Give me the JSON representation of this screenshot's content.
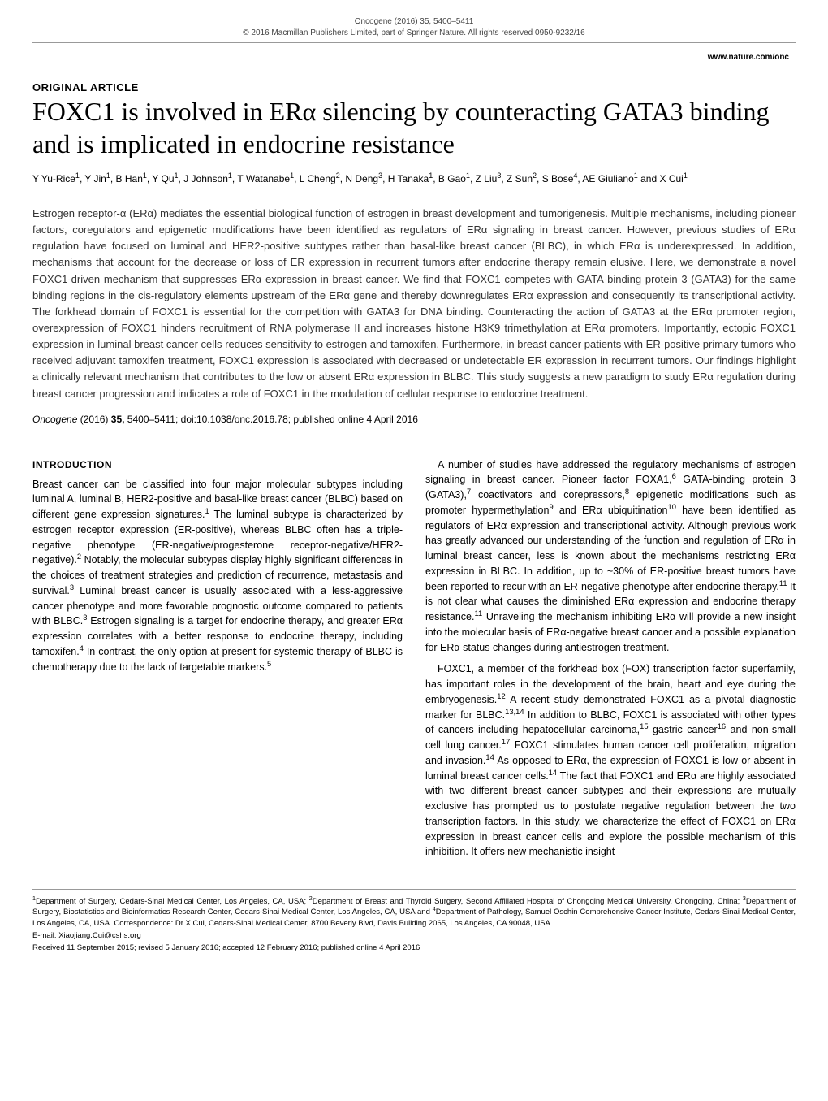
{
  "header": {
    "journal_line": "Oncogene (2016) 35, 5400–5411",
    "copyright_line": "© 2016 Macmillan Publishers Limited, part of Springer Nature. All rights reserved 0950-9232/16",
    "url": "www.nature.com/onc"
  },
  "article": {
    "type": "ORIGINAL ARTICLE",
    "title": "FOXC1 is involved in ERα silencing by counteracting GATA3 binding and is implicated in endocrine resistance",
    "authors_html": "Y Yu-Rice<sup>1</sup>, Y Jin<sup>1</sup>, B Han<sup>1</sup>, Y Qu<sup>1</sup>, J Johnson<sup>1</sup>, T Watanabe<sup>1</sup>, L Cheng<sup>2</sup>, N Deng<sup>3</sup>, H Tanaka<sup>1</sup>, B Gao<sup>1</sup>, Z Liu<sup>3</sup>, Z Sun<sup>2</sup>, S Bose<sup>4</sup>, AE Giuliano<sup>1</sup> and X Cui<sup>1</sup>",
    "abstract": "Estrogen receptor-α (ERα) mediates the essential biological function of estrogen in breast development and tumorigenesis. Multiple mechanisms, including pioneer factors, coregulators and epigenetic modifications have been identified as regulators of ERα signaling in breast cancer. However, previous studies of ERα regulation have focused on luminal and HER2-positive subtypes rather than basal-like breast cancer (BLBC), in which ERα is underexpressed. In addition, mechanisms that account for the decrease or loss of ER expression in recurrent tumors after endocrine therapy remain elusive. Here, we demonstrate a novel FOXC1-driven mechanism that suppresses ERα expression in breast cancer. We find that FOXC1 competes with GATA-binding protein 3 (GATA3) for the same binding regions in the cis-regulatory elements upstream of the ERα gene and thereby downregulates ERα expression and consequently its transcriptional activity. The forkhead domain of FOXC1 is essential for the competition with GATA3 for DNA binding. Counteracting the action of GATA3 at the ERα promoter region, overexpression of FOXC1 hinders recruitment of RNA polymerase II and increases histone H3K9 trimethylation at ERα promoters. Importantly, ectopic FOXC1 expression in luminal breast cancer cells reduces sensitivity to estrogen and tamoxifen. Furthermore, in breast cancer patients with ER-positive primary tumors who received adjuvant tamoxifen treatment, FOXC1 expression is associated with decreased or undetectable ER expression in recurrent tumors. Our findings highlight a clinically relevant mechanism that contributes to the low or absent ERα expression in BLBC. This study suggests a new paradigm to study ERα regulation during breast cancer progression and indicates a role of FOXC1 in the modulation of cellular response to endocrine treatment.",
    "citation_journal": "Oncogene",
    "citation_year": "(2016)",
    "citation_volume": "35,",
    "citation_rest": "5400–5411; doi:10.1038/onc.2016.78; published online 4 April 2016"
  },
  "body": {
    "section_head": "INTRODUCTION",
    "p1_html": "Breast cancer can be classified into four major molecular subtypes including luminal A, luminal B, HER2-positive and basal-like breast cancer (BLBC) based on different gene expression signatures.<sup>1</sup> The luminal subtype is characterized by estrogen receptor expression (ER-positive), whereas BLBC often has a triple-negative phenotype (ER-negative/progesterone receptor-negative/HER2-negative).<sup>2</sup> Notably, the molecular subtypes display highly significant differences in the choices of treatment strategies and prediction of recurrence, metastasis and survival.<sup>3</sup> Luminal breast cancer is usually associated with a less-aggressive cancer phenotype and more favorable prognostic outcome compared to patients with BLBC.<sup>3</sup> Estrogen signaling is a target for endocrine therapy, and greater ERα expression correlates with a better response to endocrine therapy, including tamoxifen.<sup>4</sup> In contrast, the only option at present for systemic therapy of BLBC is chemotherapy due to the lack of targetable markers.<sup>5</sup>",
    "p2_html": "A number of studies have addressed the regulatory mechanisms of estrogen signaling in breast cancer. Pioneer factor FOXA1,<sup>6</sup> GATA-binding protein 3 (GATA3),<sup>7</sup> coactivators and corepressors,<sup>8</sup> epigenetic modifications such as promoter hypermethylation<sup>9</sup> and ERα ubiquitination<sup>10</sup> have been identified as regulators of ERα expression and transcriptional activity. Although previous work has greatly advanced our understanding of the function and regulation of ERα in luminal breast cancer, less is known about the mechanisms restricting ERα expression in BLBC. In addition, up to ~30% of ER-positive breast tumors have been reported to recur with an ER-negative phenotype after endocrine therapy.<sup>11</sup> It is not clear what causes the diminished ERα expression and endocrine therapy resistance.<sup>11</sup> Unraveling the mechanism inhibiting ERα will provide a new insight into the molecular basis of ERα-negative breast cancer and a possible explanation for ERα status changes during antiestrogen treatment.",
    "p3_html": "FOXC1, a member of the forkhead box (FOX) transcription factor superfamily, has important roles in the development of the brain, heart and eye during the embryogenesis.<sup>12</sup> A recent study demonstrated FOXC1 as a pivotal diagnostic marker for BLBC.<sup>13,14</sup> In addition to BLBC, FOXC1 is associated with other types of cancers including hepatocellular carcinoma,<sup>15</sup> gastric cancer<sup>16</sup> and non-small cell lung cancer.<sup>17</sup> FOXC1 stimulates human cancer cell proliferation, migration and invasion.<sup>14</sup> As opposed to ERα, the expression of FOXC1 is low or absent in luminal breast cancer cells.<sup>14</sup> The fact that FOXC1 and ERα are highly associated with two different breast cancer subtypes and their expressions are mutually exclusive has prompted us to postulate negative regulation between the two transcription factors. In this study, we characterize the effect of FOXC1 on ERα expression in breast cancer cells and explore the possible mechanism of this inhibition. It offers new mechanistic insight"
  },
  "footer": {
    "affiliations_html": "<sup>1</sup>Department of Surgery, Cedars-Sinai Medical Center, Los Angeles, CA, USA; <sup>2</sup>Department of Breast and Thyroid Surgery, Second Affiliated Hospital of Chongqing Medical University, Chongqing, China; <sup>3</sup>Department of Surgery, Biostatistics and Bioinformatics Research Center, Cedars-Sinai Medical Center, Los Angeles, CA, USA and <sup>4</sup>Department of Pathology, Samuel Oschin Comprehensive Cancer Institute, Cedars-Sinai Medical Center, Los Angeles, CA, USA. Correspondence: Dr X Cui, Cedars-Sinai Medical Center, 8700 Beverly Blvd, Davis Building 2065, Los Angeles, CA 90048, USA.",
    "email": "E-mail: Xiaojiang.Cui@cshs.org",
    "dates": "Received 11 September 2015; revised 5 January 2016; accepted 12 February 2016; published online 4 April 2016"
  }
}
